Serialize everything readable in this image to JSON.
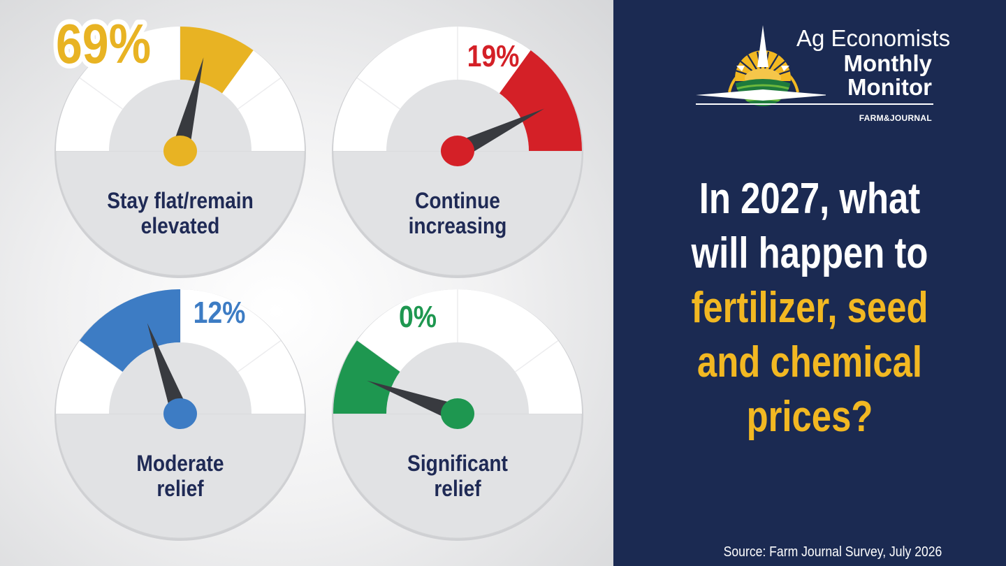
{
  "chart_data": [
    {
      "type": "gauge",
      "title": "Stay flat/remain elevated",
      "title_lines": [
        "Stay flat/remain",
        "elevated"
      ],
      "value": 69,
      "value_label": "69%",
      "color": "#e8b323"
    },
    {
      "type": "gauge",
      "title": "Continue increasing",
      "title_lines": [
        "Continue",
        "increasing"
      ],
      "value": 19,
      "value_label": "19%",
      "color": "#d42027"
    },
    {
      "type": "gauge",
      "title": "Moderate relief",
      "title_lines": [
        "Moderate",
        "relief"
      ],
      "value": 12,
      "value_label": "12%",
      "color": "#3d7cc4"
    },
    {
      "type": "gauge",
      "title": "Significant relief",
      "title_lines": [
        "Significant",
        "relief"
      ],
      "value": 0,
      "value_label": "0%",
      "color": "#1e9750"
    }
  ],
  "header": {
    "logo_line1": "Ag Economists",
    "logo_line2": "Monthly",
    "logo_line3": "Monitor",
    "brand_left": "FARM",
    "brand_amp": "&",
    "brand_right": "JOURNAL"
  },
  "question": {
    "lines": [
      {
        "text": "In 2027, what",
        "tone": "white"
      },
      {
        "text": "will happen to",
        "tone": "white"
      },
      {
        "text": "fertilizer, seed",
        "tone": "yellow"
      },
      {
        "text": "and chemical",
        "tone": "yellow"
      },
      {
        "text": "prices?",
        "tone": "yellow"
      }
    ]
  },
  "source": "Source: Farm Journal Survey, July 2026",
  "colors": {
    "navy": "#1b2a52",
    "accent_yellow": "#f2b822",
    "label_text": "#1f2a55",
    "needle": "#383a3f"
  }
}
